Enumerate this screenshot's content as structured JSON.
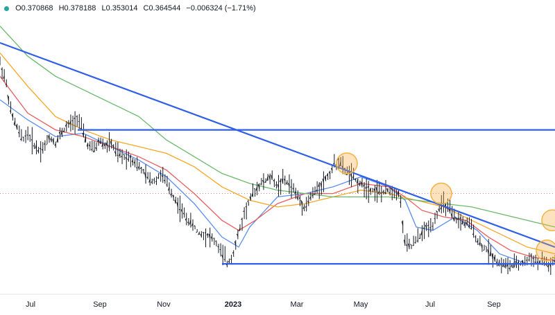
{
  "legend": {
    "open": "O0.370868",
    "high": "H0.378188",
    "low": "L0.353014",
    "close": "C0.364544",
    "change": "−0.006324 (−1.71%)"
  },
  "colors": {
    "price_bars": "#131722",
    "sma_fast": "#5b8def",
    "sma_mid": "#e85d5d",
    "sma_slow": "#f5a623",
    "sma_long": "#6bb86b",
    "trendline": "#2f5fe8",
    "highlight_circle": "#f5b041",
    "reference_line": "#e57373"
  },
  "chart_data": {
    "type": "ohlc",
    "symbol_ohlc": {
      "open": 0.370868,
      "high": 0.378188,
      "low": 0.353014,
      "close": 0.364544,
      "change": -0.006324,
      "change_pct": -1.71
    },
    "x_ticks": [
      "Jul",
      "Sep",
      "Nov",
      "2023",
      "Mar",
      "May",
      "Jul",
      "Sep"
    ],
    "x_tick_positions": [
      0.055,
      0.18,
      0.295,
      0.42,
      0.535,
      0.65,
      0.775,
      0.89
    ],
    "ylim": [
      0.3,
      1.1
    ],
    "reference_price": 0.58,
    "series": [
      {
        "role": "price",
        "points": [
          [
            0.0,
            0.97
          ],
          [
            0.01,
            0.92
          ],
          [
            0.02,
            0.82
          ],
          [
            0.03,
            0.78
          ],
          [
            0.04,
            0.74
          ],
          [
            0.05,
            0.76
          ],
          [
            0.06,
            0.73
          ],
          [
            0.07,
            0.71
          ],
          [
            0.08,
            0.72
          ],
          [
            0.09,
            0.75
          ],
          [
            0.1,
            0.73
          ],
          [
            0.11,
            0.76
          ],
          [
            0.12,
            0.78
          ],
          [
            0.13,
            0.79
          ],
          [
            0.14,
            0.81
          ],
          [
            0.15,
            0.76
          ],
          [
            0.16,
            0.72
          ],
          [
            0.17,
            0.71
          ],
          [
            0.18,
            0.74
          ],
          [
            0.19,
            0.72
          ],
          [
            0.2,
            0.73
          ],
          [
            0.21,
            0.7
          ],
          [
            0.22,
            0.69
          ],
          [
            0.23,
            0.69
          ],
          [
            0.24,
            0.68
          ],
          [
            0.25,
            0.66
          ],
          [
            0.26,
            0.64
          ],
          [
            0.27,
            0.62
          ],
          [
            0.28,
            0.62
          ],
          [
            0.29,
            0.64
          ],
          [
            0.3,
            0.61
          ],
          [
            0.31,
            0.58
          ],
          [
            0.32,
            0.55
          ],
          [
            0.33,
            0.52
          ],
          [
            0.34,
            0.5
          ],
          [
            0.35,
            0.48
          ],
          [
            0.36,
            0.46
          ],
          [
            0.37,
            0.46
          ],
          [
            0.38,
            0.45
          ],
          [
            0.39,
            0.43
          ],
          [
            0.4,
            0.4
          ],
          [
            0.41,
            0.37
          ],
          [
            0.42,
            0.4
          ],
          [
            0.43,
            0.46
          ],
          [
            0.44,
            0.52
          ],
          [
            0.45,
            0.56
          ],
          [
            0.46,
            0.59
          ],
          [
            0.47,
            0.61
          ],
          [
            0.48,
            0.62
          ],
          [
            0.49,
            0.63
          ],
          [
            0.5,
            0.6
          ],
          [
            0.51,
            0.62
          ],
          [
            0.52,
            0.61
          ],
          [
            0.53,
            0.59
          ],
          [
            0.54,
            0.56
          ],
          [
            0.55,
            0.54
          ],
          [
            0.56,
            0.57
          ],
          [
            0.57,
            0.59
          ],
          [
            0.58,
            0.61
          ],
          [
            0.59,
            0.63
          ],
          [
            0.6,
            0.66
          ],
          [
            0.61,
            0.68
          ],
          [
            0.62,
            0.65
          ],
          [
            0.63,
            0.64
          ],
          [
            0.64,
            0.62
          ],
          [
            0.65,
            0.61
          ],
          [
            0.66,
            0.6
          ],
          [
            0.67,
            0.59
          ],
          [
            0.68,
            0.59
          ],
          [
            0.69,
            0.58
          ],
          [
            0.7,
            0.59
          ],
          [
            0.71,
            0.59
          ],
          [
            0.72,
            0.58
          ],
          [
            0.73,
            0.43
          ],
          [
            0.74,
            0.42
          ],
          [
            0.75,
            0.44
          ],
          [
            0.76,
            0.46
          ],
          [
            0.77,
            0.48
          ],
          [
            0.78,
            0.49
          ],
          [
            0.79,
            0.53
          ],
          [
            0.8,
            0.55
          ],
          [
            0.81,
            0.53
          ],
          [
            0.82,
            0.5
          ],
          [
            0.83,
            0.5
          ],
          [
            0.84,
            0.49
          ],
          [
            0.85,
            0.48
          ],
          [
            0.86,
            0.44
          ],
          [
            0.87,
            0.42
          ],
          [
            0.88,
            0.41
          ],
          [
            0.89,
            0.39
          ],
          [
            0.9,
            0.37
          ],
          [
            0.91,
            0.37
          ],
          [
            0.92,
            0.36
          ],
          [
            0.93,
            0.37
          ],
          [
            0.94,
            0.37
          ],
          [
            0.95,
            0.38
          ],
          [
            0.96,
            0.39
          ],
          [
            0.97,
            0.37
          ],
          [
            0.98,
            0.38
          ],
          [
            0.99,
            0.36
          ],
          [
            1.0,
            0.38
          ]
        ]
      },
      {
        "role": "sma_fast",
        "points": [
          [
            0.0,
            0.86
          ],
          [
            0.05,
            0.8
          ],
          [
            0.1,
            0.75
          ],
          [
            0.15,
            0.76
          ],
          [
            0.2,
            0.72
          ],
          [
            0.25,
            0.68
          ],
          [
            0.3,
            0.63
          ],
          [
            0.35,
            0.55
          ],
          [
            0.4,
            0.45
          ],
          [
            0.43,
            0.42
          ],
          [
            0.45,
            0.48
          ],
          [
            0.5,
            0.57
          ],
          [
            0.55,
            0.58
          ],
          [
            0.6,
            0.6
          ],
          [
            0.65,
            0.63
          ],
          [
            0.7,
            0.6
          ],
          [
            0.73,
            0.56
          ],
          [
            0.75,
            0.48
          ],
          [
            0.78,
            0.47
          ],
          [
            0.82,
            0.51
          ],
          [
            0.86,
            0.47
          ],
          [
            0.9,
            0.4
          ],
          [
            0.95,
            0.37
          ],
          [
            1.0,
            0.37
          ]
        ]
      },
      {
        "role": "sma_mid",
        "points": [
          [
            0.0,
            0.93
          ],
          [
            0.05,
            0.82
          ],
          [
            0.1,
            0.77
          ],
          [
            0.15,
            0.75
          ],
          [
            0.2,
            0.72
          ],
          [
            0.25,
            0.69
          ],
          [
            0.3,
            0.65
          ],
          [
            0.35,
            0.58
          ],
          [
            0.4,
            0.5
          ],
          [
            0.43,
            0.47
          ],
          [
            0.46,
            0.5
          ],
          [
            0.5,
            0.55
          ],
          [
            0.55,
            0.58
          ],
          [
            0.6,
            0.58
          ],
          [
            0.65,
            0.61
          ],
          [
            0.7,
            0.6
          ],
          [
            0.73,
            0.57
          ],
          [
            0.76,
            0.53
          ],
          [
            0.8,
            0.51
          ],
          [
            0.84,
            0.5
          ],
          [
            0.88,
            0.45
          ],
          [
            0.92,
            0.41
          ],
          [
            0.96,
            0.39
          ],
          [
            1.0,
            0.38
          ]
        ]
      },
      {
        "role": "sma_slow",
        "points": [
          [
            0.0,
            1.0
          ],
          [
            0.05,
            0.9
          ],
          [
            0.1,
            0.81
          ],
          [
            0.15,
            0.77
          ],
          [
            0.2,
            0.74
          ],
          [
            0.25,
            0.72
          ],
          [
            0.3,
            0.7
          ],
          [
            0.35,
            0.66
          ],
          [
            0.4,
            0.6
          ],
          [
            0.45,
            0.56
          ],
          [
            0.5,
            0.54
          ],
          [
            0.55,
            0.55
          ],
          [
            0.6,
            0.57
          ],
          [
            0.65,
            0.59
          ],
          [
            0.7,
            0.58
          ],
          [
            0.75,
            0.56
          ],
          [
            0.8,
            0.54
          ],
          [
            0.85,
            0.5
          ],
          [
            0.9,
            0.46
          ],
          [
            0.95,
            0.42
          ],
          [
            1.0,
            0.4
          ]
        ]
      },
      {
        "role": "sma_long",
        "points": [
          [
            0.0,
            1.08
          ],
          [
            0.05,
            0.99
          ],
          [
            0.1,
            0.93
          ],
          [
            0.15,
            0.89
          ],
          [
            0.2,
            0.85
          ],
          [
            0.25,
            0.81
          ],
          [
            0.3,
            0.74
          ],
          [
            0.35,
            0.69
          ],
          [
            0.4,
            0.64
          ],
          [
            0.45,
            0.61
          ],
          [
            0.5,
            0.59
          ],
          [
            0.55,
            0.58
          ],
          [
            0.6,
            0.57
          ],
          [
            0.65,
            0.57
          ],
          [
            0.7,
            0.57
          ],
          [
            0.75,
            0.56
          ],
          [
            0.8,
            0.55
          ],
          [
            0.85,
            0.54
          ],
          [
            0.9,
            0.52
          ],
          [
            0.95,
            0.5
          ],
          [
            1.0,
            0.48
          ]
        ]
      }
    ],
    "annotations": {
      "lines": [
        {
          "kind": "descending_trendline",
          "from": [
            0.0,
            1.03
          ],
          "to": [
            1.0,
            0.42
          ]
        },
        {
          "kind": "horizontal_resistance",
          "from": [
            0.14,
            0.77
          ],
          "to": [
            1.0,
            0.77
          ]
        },
        {
          "kind": "horizontal_support",
          "from": [
            0.4,
            0.37
          ],
          "to": [
            1.0,
            0.37
          ]
        }
      ],
      "circles": [
        {
          "at": [
            0.625,
            0.67
          ]
        },
        {
          "at": [
            0.795,
            0.58
          ]
        },
        {
          "at": [
            0.995,
            0.5
          ]
        },
        {
          "at": [
            0.985,
            0.41
          ]
        }
      ]
    }
  }
}
